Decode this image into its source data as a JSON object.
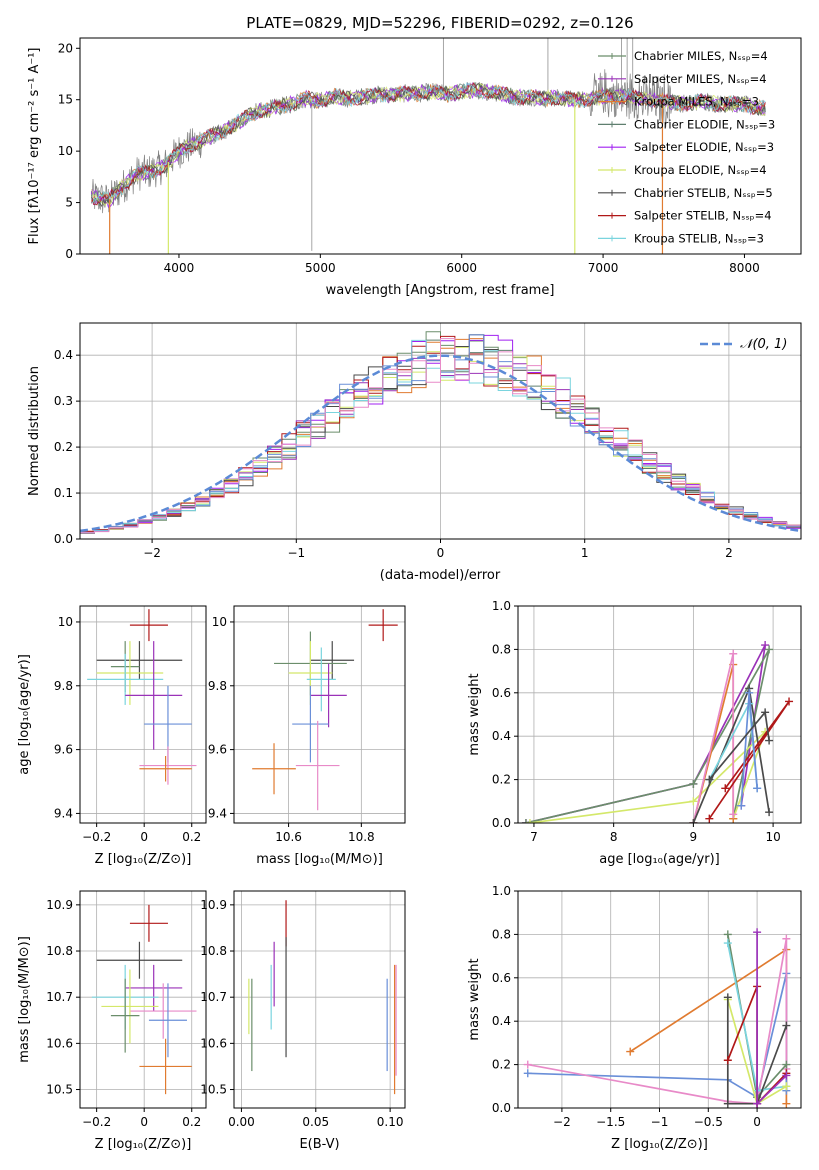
{
  "colors": [
    "#6b8e6b",
    "#9a32b8",
    "#e07b30",
    "#5f7f6f",
    "#a020f0",
    "#d4e86a",
    "#4a4a4a",
    "#b01818",
    "#7ad4de",
    "#6a8fd8",
    "#e88ac8"
  ],
  "chart_data": [
    {
      "id": "spectrum",
      "type": "line",
      "title": "PLATE=0829, MJD=52296, FIBERID=0292, z=0.126",
      "xlabel": "wavelength [Angstrom, rest frame]",
      "ylabel": "Flux [fλ10⁻¹⁷ erg cm⁻² s⁻¹ A⁻¹]",
      "xlim": [
        3300,
        8400
      ],
      "ylim": [
        0,
        21
      ],
      "xticks": [
        4000,
        5000,
        6000,
        7000,
        8000
      ],
      "yticks": [
        0,
        5,
        10,
        15,
        20
      ],
      "legend_position": "right",
      "legend": [
        {
          "label": "Chabrier MILES, Nₛₛₚ=4",
          "color": "#6b8e6b"
        },
        {
          "label": "Salpeter MILES, Nₛₛₚ=4",
          "color": "#9a32b8"
        },
        {
          "label": "Kroupa MILES, Nₛₛₚ=3",
          "color": "#e07b30"
        },
        {
          "label": "Chabrier ELODIE, Nₛₛₚ=3",
          "color": "#5f7f6f"
        },
        {
          "label": "Salpeter ELODIE, Nₛₛₚ=3",
          "color": "#a020f0"
        },
        {
          "label": "Kroupa ELODIE, Nₛₛₚ=4",
          "color": "#d4e86a"
        },
        {
          "label": "Chabrier STELIB, Nₛₛₚ=5",
          "color": "#4a4a4a"
        },
        {
          "label": "Salpeter STELIB, Nₛₛₚ=4",
          "color": "#b01818"
        },
        {
          "label": "Kroupa STELIB, Nₛₛₚ=3",
          "color": "#7ad4de"
        }
      ],
      "continuum": [
        [
          3380,
          5.6
        ],
        [
          3500,
          5.2
        ],
        [
          3600,
          6.5
        ],
        [
          3700,
          7.8
        ],
        [
          3800,
          8.0
        ],
        [
          3900,
          8.6
        ],
        [
          4000,
          10.0
        ],
        [
          4100,
          10.6
        ],
        [
          4200,
          11.3
        ],
        [
          4300,
          11.8
        ],
        [
          4400,
          12.6
        ],
        [
          4500,
          13.6
        ],
        [
          4600,
          14.0
        ],
        [
          4700,
          14.3
        ],
        [
          4800,
          14.6
        ],
        [
          4900,
          15.1
        ],
        [
          5000,
          14.9
        ],
        [
          5100,
          15.3
        ],
        [
          5200,
          15.1
        ],
        [
          5300,
          15.3
        ],
        [
          5400,
          15.5
        ],
        [
          5500,
          15.5
        ],
        [
          5600,
          15.6
        ],
        [
          5700,
          15.6
        ],
        [
          5800,
          15.8
        ],
        [
          5900,
          15.5
        ],
        [
          6000,
          15.8
        ],
        [
          6100,
          15.9
        ],
        [
          6200,
          15.8
        ],
        [
          6300,
          15.5
        ],
        [
          6400,
          15.2
        ],
        [
          6500,
          15.3
        ],
        [
          6600,
          15.1
        ],
        [
          6700,
          15.2
        ],
        [
          6800,
          15.0
        ],
        [
          6900,
          15.1
        ],
        [
          7000,
          15.3
        ],
        [
          7100,
          15.3
        ],
        [
          7200,
          15.3
        ],
        [
          7300,
          15.0
        ],
        [
          7400,
          14.9
        ],
        [
          7500,
          14.7
        ],
        [
          7600,
          14.6
        ],
        [
          7700,
          14.9
        ],
        [
          7800,
          14.6
        ],
        [
          7900,
          14.6
        ],
        [
          8000,
          14.5
        ],
        [
          8150,
          14.1
        ]
      ]
    },
    {
      "id": "residuals",
      "type": "line",
      "xlabel": "(data-model)/error",
      "ylabel": "Normed distribution",
      "xlim": [
        -2.5,
        2.5
      ],
      "ylim": [
        0,
        0.47
      ],
      "xticks": [
        -2,
        -1,
        0,
        1,
        2
      ],
      "yticks": [
        0.0,
        0.1,
        0.2,
        0.3,
        0.4
      ],
      "grid": true,
      "legend_position": "top-right",
      "legend_label": "𝒩(0, 1)",
      "curve_color": "#5b8ad6"
    },
    {
      "id": "age-vs-z",
      "type": "scatter",
      "xlabel": "Z [log₁₀(Z/Z⊙)]",
      "ylabel": "age  [log₁₀(age/yr)]",
      "xlim": [
        -0.27,
        0.26
      ],
      "ylim": [
        9.37,
        10.05
      ],
      "xticks": [
        -0.2,
        0.0,
        0.2
      ],
      "yticks": [
        9.4,
        9.6,
        9.8,
        10.0
      ],
      "grid": true,
      "points": [
        {
          "x": 0.02,
          "y": 9.99,
          "xerr": 0.08,
          "yerr": 0.05,
          "color": "#b01818"
        },
        {
          "x": -0.02,
          "y": 9.88,
          "xerr": 0.18,
          "yerr": 0.06,
          "color": "#4a4a4a"
        },
        {
          "x": -0.08,
          "y": 9.86,
          "xerr": 0.06,
          "yerr": 0.08,
          "color": "#6b8e6b"
        },
        {
          "x": -0.06,
          "y": 9.84,
          "xerr": 0.14,
          "yerr": 0.1,
          "color": "#d4e86a"
        },
        {
          "x": -0.08,
          "y": 9.82,
          "xerr": 0.16,
          "yerr": 0.08,
          "color": "#7ad4de"
        },
        {
          "x": 0.04,
          "y": 9.77,
          "xerr": 0.12,
          "yerr": 0.17,
          "color": "#9a32b8"
        },
        {
          "x": 0.1,
          "y": 9.68,
          "xerr": 0.1,
          "yerr": 0.12,
          "color": "#6a8fd8"
        },
        {
          "x": 0.1,
          "y": 9.55,
          "xerr": 0.12,
          "yerr": 0.06,
          "color": "#e88ac8"
        },
        {
          "x": 0.09,
          "y": 9.54,
          "xerr": 0.11,
          "yerr": 0.04,
          "color": "#e07b30"
        }
      ]
    },
    {
      "id": "age-vs-mass",
      "type": "scatter",
      "xlabel": "mass [log₁₀(M/M⊙)]",
      "xlim": [
        10.45,
        10.92
      ],
      "ylim": [
        9.37,
        10.05
      ],
      "xticks": [
        10.6,
        10.8
      ],
      "yticks": [
        9.4,
        9.6,
        9.8,
        10.0
      ],
      "grid": true,
      "points": [
        {
          "x": 10.86,
          "y": 9.99,
          "xerr": 0.04,
          "yerr": 0.05,
          "color": "#b01818"
        },
        {
          "x": 10.72,
          "y": 9.88,
          "xerr": 0.06,
          "yerr": 0.06,
          "color": "#4a4a4a"
        },
        {
          "x": 10.66,
          "y": 9.87,
          "xerr": 0.1,
          "yerr": 0.1,
          "color": "#6b8e6b"
        },
        {
          "x": 10.66,
          "y": 9.84,
          "xerr": 0.06,
          "yerr": 0.1,
          "color": "#d4e86a"
        },
        {
          "x": 10.69,
          "y": 9.82,
          "xerr": 0.04,
          "yerr": 0.1,
          "color": "#7ad4de"
        },
        {
          "x": 10.71,
          "y": 9.77,
          "xerr": 0.05,
          "yerr": 0.1,
          "color": "#9a32b8"
        },
        {
          "x": 10.66,
          "y": 9.68,
          "xerr": 0.05,
          "yerr": 0.12,
          "color": "#6a8fd8"
        },
        {
          "x": 10.56,
          "y": 9.54,
          "xerr": 0.06,
          "yerr": 0.08,
          "color": "#e07b30"
        },
        {
          "x": 10.68,
          "y": 9.55,
          "xerr": 0.06,
          "yerr": 0.14,
          "color": "#e88ac8"
        }
      ]
    },
    {
      "id": "mass-weight-vs-age",
      "type": "line",
      "xlabel": "age  [log₁₀(age/yr)]",
      "ylabel": "mass weight",
      "xlim": [
        6.8,
        10.35
      ],
      "ylim": [
        0,
        1
      ],
      "xticks": [
        7,
        8,
        9,
        10
      ],
      "yticks": [
        0.0,
        0.2,
        0.4,
        0.6,
        0.8,
        1.0
      ],
      "grid": true,
      "series": [
        {
          "color": "#9a32b8",
          "points": [
            [
              6.9,
              0.0
            ],
            [
              9.0,
              0.18
            ],
            [
              9.9,
              0.82
            ],
            [
              9.6,
              0.08
            ]
          ]
        },
        {
          "color": "#6b8e6b",
          "points": [
            [
              6.9,
              0.0
            ],
            [
              9.0,
              0.18
            ],
            [
              9.95,
              0.8
            ],
            [
              9.5,
              0.02
            ]
          ]
        },
        {
          "color": "#d4e86a",
          "points": [
            [
              6.95,
              0.0
            ],
            [
              9.0,
              0.1
            ],
            [
              9.9,
              0.42
            ],
            [
              9.5,
              0.02
            ]
          ]
        },
        {
          "color": "#e07b30",
          "points": [
            [
              9.0,
              0.0
            ],
            [
              9.5,
              0.73
            ],
            [
              9.5,
              0.02
            ]
          ]
        },
        {
          "color": "#e88ac8",
          "points": [
            [
              9.0,
              0.0
            ],
            [
              9.5,
              0.78
            ],
            [
              9.5,
              0.04
            ]
          ]
        },
        {
          "color": "#4a4a4a",
          "points": [
            [
              9.0,
              0.0
            ],
            [
              9.7,
              0.62
            ],
            [
              9.95,
              0.05
            ]
          ]
        },
        {
          "color": "#b01818",
          "points": [
            [
              9.2,
              0.02
            ],
            [
              10.2,
              0.56
            ],
            [
              9.4,
              0.16
            ]
          ]
        },
        {
          "color": "#7ad4de",
          "points": [
            [
              9.2,
              0.2
            ],
            [
              9.7,
              0.55
            ],
            [
              9.8,
              0.16
            ]
          ]
        },
        {
          "color": "#6a8fd8",
          "points": [
            [
              9.6,
              0.08
            ],
            [
              9.7,
              0.6
            ],
            [
              9.8,
              0.16
            ]
          ]
        },
        {
          "color": "#4a4a4a",
          "points": [
            [
              9.2,
              0.2
            ],
            [
              9.9,
              0.51
            ],
            [
              9.95,
              0.38
            ]
          ]
        }
      ]
    },
    {
      "id": "mass-vs-z",
      "type": "scatter",
      "xlabel": "Z [log₁₀(Z/Z⊙)]",
      "ylabel": "mass [log₁₀(M/M⊙)]",
      "xlim": [
        -0.27,
        0.26
      ],
      "ylim": [
        10.46,
        10.93
      ],
      "xticks": [
        -0.2,
        0.0,
        0.2
      ],
      "yticks": [
        10.5,
        10.6,
        10.7,
        10.8,
        10.9
      ],
      "grid": true,
      "points": [
        {
          "x": 0.02,
          "y": 10.86,
          "xerr": 0.08,
          "yerr": 0.04,
          "color": "#b01818"
        },
        {
          "x": -0.02,
          "y": 10.78,
          "xerr": 0.18,
          "yerr": 0.04,
          "color": "#4a4a4a"
        },
        {
          "x": 0.04,
          "y": 10.72,
          "xerr": 0.12,
          "yerr": 0.05,
          "color": "#9a32b8"
        },
        {
          "x": -0.08,
          "y": 10.7,
          "xerr": 0.14,
          "yerr": 0.07,
          "color": "#7ad4de"
        },
        {
          "x": 0.08,
          "y": 10.67,
          "xerr": 0.14,
          "yerr": 0.06,
          "color": "#e88ac8"
        },
        {
          "x": -0.06,
          "y": 10.68,
          "xerr": 0.12,
          "yerr": 0.08,
          "color": "#d4e86a"
        },
        {
          "x": -0.08,
          "y": 10.66,
          "xerr": 0.06,
          "yerr": 0.08,
          "color": "#6b8e6b"
        },
        {
          "x": 0.1,
          "y": 10.65,
          "xerr": 0.08,
          "yerr": 0.08,
          "color": "#6a8fd8"
        },
        {
          "x": 0.09,
          "y": 10.55,
          "xerr": 0.11,
          "yerr": 0.06,
          "color": "#e07b30"
        }
      ]
    },
    {
      "id": "mass-vs-ebv",
      "type": "scatter",
      "xlabel": "E(B-V)",
      "xlim": [
        -0.005,
        0.11
      ],
      "ylim": [
        10.46,
        10.93
      ],
      "xticks": [
        0.0,
        0.05,
        0.1
      ],
      "xticklabels": [
        "0.00",
        "0.05",
        "0.10"
      ],
      "yticks": [
        10.5,
        10.6,
        10.7,
        10.8,
        10.9
      ],
      "grid": true,
      "points": [
        {
          "x": 0.005,
          "y": 10.68,
          "yerr": 0.06,
          "color": "#d4e86a"
        },
        {
          "x": 0.007,
          "y": 10.64,
          "yerr": 0.1,
          "color": "#6b8e6b"
        },
        {
          "x": 0.02,
          "y": 10.7,
          "yerr": 0.07,
          "color": "#7ad4de"
        },
        {
          "x": 0.022,
          "y": 10.75,
          "yerr": 0.07,
          "color": "#9a32b8"
        },
        {
          "x": 0.03,
          "y": 10.86,
          "yerr": 0.05,
          "color": "#b01818"
        },
        {
          "x": 0.03,
          "y": 10.7,
          "yerr": 0.13,
          "color": "#4a4a4a"
        },
        {
          "x": 0.098,
          "y": 10.64,
          "yerr": 0.1,
          "color": "#6a8fd8"
        },
        {
          "x": 0.103,
          "y": 10.63,
          "yerr": 0.14,
          "color": "#e07b30"
        },
        {
          "x": 0.104,
          "y": 10.65,
          "yerr": 0.12,
          "color": "#e88ac8"
        }
      ]
    },
    {
      "id": "mass-weight-vs-z",
      "type": "line",
      "xlabel": "Z [log₁₀(Z/Z⊙)]",
      "ylabel": "mass weight",
      "xlim": [
        -2.45,
        0.45
      ],
      "ylim": [
        0,
        1
      ],
      "xticks": [
        -2.0,
        -1.5,
        -1.0,
        -0.5,
        0.0
      ],
      "yticks": [
        0.0,
        0.2,
        0.4,
        0.6,
        0.8,
        1.0
      ],
      "grid": true,
      "series": [
        {
          "color": "#e07b30",
          "points": [
            [
              -1.3,
              0.26
            ],
            [
              0.3,
              0.73
            ],
            [
              0.3,
              0.02
            ]
          ]
        },
        {
          "color": "#6a8fd8",
          "points": [
            [
              -2.35,
              0.16
            ],
            [
              -0.3,
              0.13
            ],
            [
              0.0,
              0.05
            ],
            [
              0.3,
              0.62
            ],
            [
              0.3,
              0.08
            ]
          ]
        },
        {
          "color": "#e88ac8",
          "points": [
            [
              -2.35,
              0.2
            ],
            [
              -0.3,
              0.03
            ],
            [
              0.0,
              0.02
            ],
            [
              0.3,
              0.78
            ],
            [
              0.3,
              0.18
            ]
          ]
        },
        {
          "color": "#6b8e6b",
          "points": [
            [
              -0.3,
              0.8
            ],
            [
              0.0,
              0.05
            ],
            [
              0.3,
              0.2
            ]
          ]
        },
        {
          "color": "#7ad4de",
          "points": [
            [
              -0.3,
              0.76
            ],
            [
              0.0,
              0.08
            ],
            [
              0.3,
              0.1
            ]
          ]
        },
        {
          "color": "#d4e86a",
          "points": [
            [
              -0.3,
              0.5
            ],
            [
              0.0,
              0.02
            ],
            [
              0.3,
              0.1
            ]
          ]
        },
        {
          "color": "#4a4a4a",
          "points": [
            [
              -0.3,
              0.51
            ],
            [
              -0.3,
              0.02
            ],
            [
              0.0,
              0.02
            ],
            [
              0.3,
              0.38
            ]
          ]
        },
        {
          "color": "#b01818",
          "points": [
            [
              -0.3,
              0.22
            ],
            [
              0.0,
              0.56
            ],
            [
              0.0,
              0.02
            ],
            [
              0.3,
              0.16
            ]
          ]
        },
        {
          "color": "#9a32b8",
          "points": [
            [
              0.0,
              0.81
            ],
            [
              0.0,
              0.02
            ],
            [
              0.3,
              0.15
            ]
          ]
        }
      ]
    }
  ]
}
